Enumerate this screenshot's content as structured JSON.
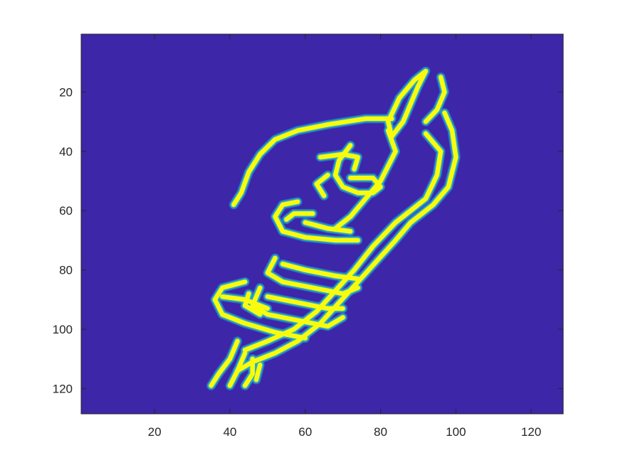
{
  "chart_data": {
    "type": "heatmap",
    "title": "",
    "xlabel": "",
    "ylabel": "",
    "image_size": [
      128,
      128
    ],
    "xlim": [
      0.5,
      128.5
    ],
    "ylim": [
      0.5,
      128.5
    ],
    "y_direction": "reverse",
    "x_ticks": [
      20,
      40,
      60,
      80,
      100,
      120
    ],
    "x_tick_labels": [
      "20",
      "40",
      "60",
      "80",
      "100",
      "120"
    ],
    "y_ticks": [
      20,
      40,
      60,
      80,
      100,
      120
    ],
    "y_tick_labels": [
      "20",
      "40",
      "60",
      "80",
      "100",
      "120"
    ],
    "colormap": "parula",
    "colors": {
      "background": "#3D26A8",
      "edge_high": "#F9FB0E",
      "edge_mid": "#2CB5C0",
      "edge_low": "#1FA3DD",
      "axis": "#262626"
    },
    "content": "edge-detected outline of a hand giving a thumbs-up",
    "outline_strokes": [
      [
        [
          92,
          13
        ],
        [
          90,
          18
        ],
        [
          88,
          24
        ],
        [
          86,
          30
        ],
        [
          83,
          35
        ],
        [
          82,
          30
        ],
        [
          85,
          22
        ],
        [
          89,
          16
        ],
        [
          92,
          13
        ]
      ],
      [
        [
          96,
          15
        ],
        [
          97,
          20
        ],
        [
          95,
          26
        ],
        [
          92,
          30
        ]
      ],
      [
        [
          97,
          27
        ],
        [
          99,
          33
        ],
        [
          100,
          42
        ],
        [
          98,
          52
        ],
        [
          94,
          58
        ],
        [
          88,
          64
        ],
        [
          84,
          70
        ],
        [
          79,
          77
        ],
        [
          74,
          84
        ],
        [
          69,
          91
        ],
        [
          64,
          98
        ],
        [
          58,
          104
        ],
        [
          52,
          108
        ],
        [
          46,
          111
        ],
        [
          42,
          114
        ]
      ],
      [
        [
          92,
          34
        ],
        [
          96,
          40
        ],
        [
          95,
          48
        ],
        [
          92,
          56
        ],
        [
          88,
          60
        ],
        [
          84,
          64
        ],
        [
          78,
          72
        ],
        [
          73,
          80
        ],
        [
          68,
          87
        ],
        [
          63,
          94
        ],
        [
          57,
          100
        ],
        [
          50,
          104
        ],
        [
          44,
          107
        ]
      ],
      [
        [
          83,
          29
        ],
        [
          76,
          29
        ],
        [
          66,
          31
        ],
        [
          58,
          33
        ],
        [
          52,
          36
        ],
        [
          48,
          41
        ],
        [
          45,
          47
        ],
        [
          43,
          54
        ],
        [
          41,
          58
        ]
      ],
      [
        [
          82,
          33
        ],
        [
          84,
          40
        ],
        [
          80,
          50
        ],
        [
          76,
          56
        ],
        [
          72,
          62
        ],
        [
          68,
          66
        ]
      ],
      [
        [
          72,
          38
        ],
        [
          69,
          43
        ],
        [
          68,
          48
        ],
        [
          70,
          52
        ],
        [
          74,
          54
        ],
        [
          78,
          54
        ],
        [
          80,
          52
        ],
        [
          78,
          49
        ],
        [
          72,
          49
        ]
      ],
      [
        [
          64,
          42
        ],
        [
          70,
          41
        ],
        [
          74,
          42
        ],
        [
          73,
          46
        ]
      ],
      [
        [
          66,
          48
        ],
        [
          63,
          51
        ],
        [
          65,
          55
        ]
      ],
      [
        [
          58,
          57
        ],
        [
          54,
          58
        ],
        [
          52,
          62
        ],
        [
          54,
          67
        ],
        [
          60,
          69
        ],
        [
          68,
          70
        ],
        [
          74,
          70
        ]
      ],
      [
        [
          62,
          61
        ],
        [
          57,
          61
        ],
        [
          55,
          63
        ]
      ],
      [
        [
          60,
          64
        ],
        [
          66,
          66
        ],
        [
          72,
          67
        ]
      ],
      [
        [
          52,
          76
        ],
        [
          50,
          81
        ],
        [
          54,
          84
        ],
        [
          62,
          86
        ],
        [
          70,
          88
        ],
        [
          74,
          86
        ]
      ],
      [
        [
          54,
          78
        ],
        [
          60,
          80
        ],
        [
          68,
          82
        ],
        [
          74,
          83
        ]
      ],
      [
        [
          48,
          86
        ],
        [
          46,
          92
        ],
        [
          50,
          95
        ],
        [
          58,
          97
        ],
        [
          66,
          99
        ],
        [
          70,
          96
        ]
      ],
      [
        [
          50,
          89
        ],
        [
          58,
          91
        ],
        [
          66,
          93
        ],
        [
          70,
          93
        ]
      ],
      [
        [
          44,
          84
        ],
        [
          38,
          86
        ],
        [
          36,
          90
        ],
        [
          38,
          95
        ],
        [
          44,
          98
        ],
        [
          52,
          101
        ],
        [
          60,
          103
        ]
      ],
      [
        [
          38,
          89
        ],
        [
          44,
          90
        ],
        [
          50,
          93
        ]
      ],
      [
        [
          45,
          88
        ],
        [
          44,
          92
        ],
        [
          48,
          95
        ]
      ],
      [
        [
          42,
          104
        ],
        [
          40,
          110
        ],
        [
          37,
          115
        ],
        [
          35,
          119
        ]
      ],
      [
        [
          44,
          108
        ],
        [
          42,
          114
        ],
        [
          40,
          119
        ]
      ],
      [
        [
          46,
          110
        ],
        [
          46,
          115
        ],
        [
          44,
          119
        ]
      ],
      [
        [
          48,
          112
        ],
        [
          47,
          117
        ]
      ]
    ]
  }
}
